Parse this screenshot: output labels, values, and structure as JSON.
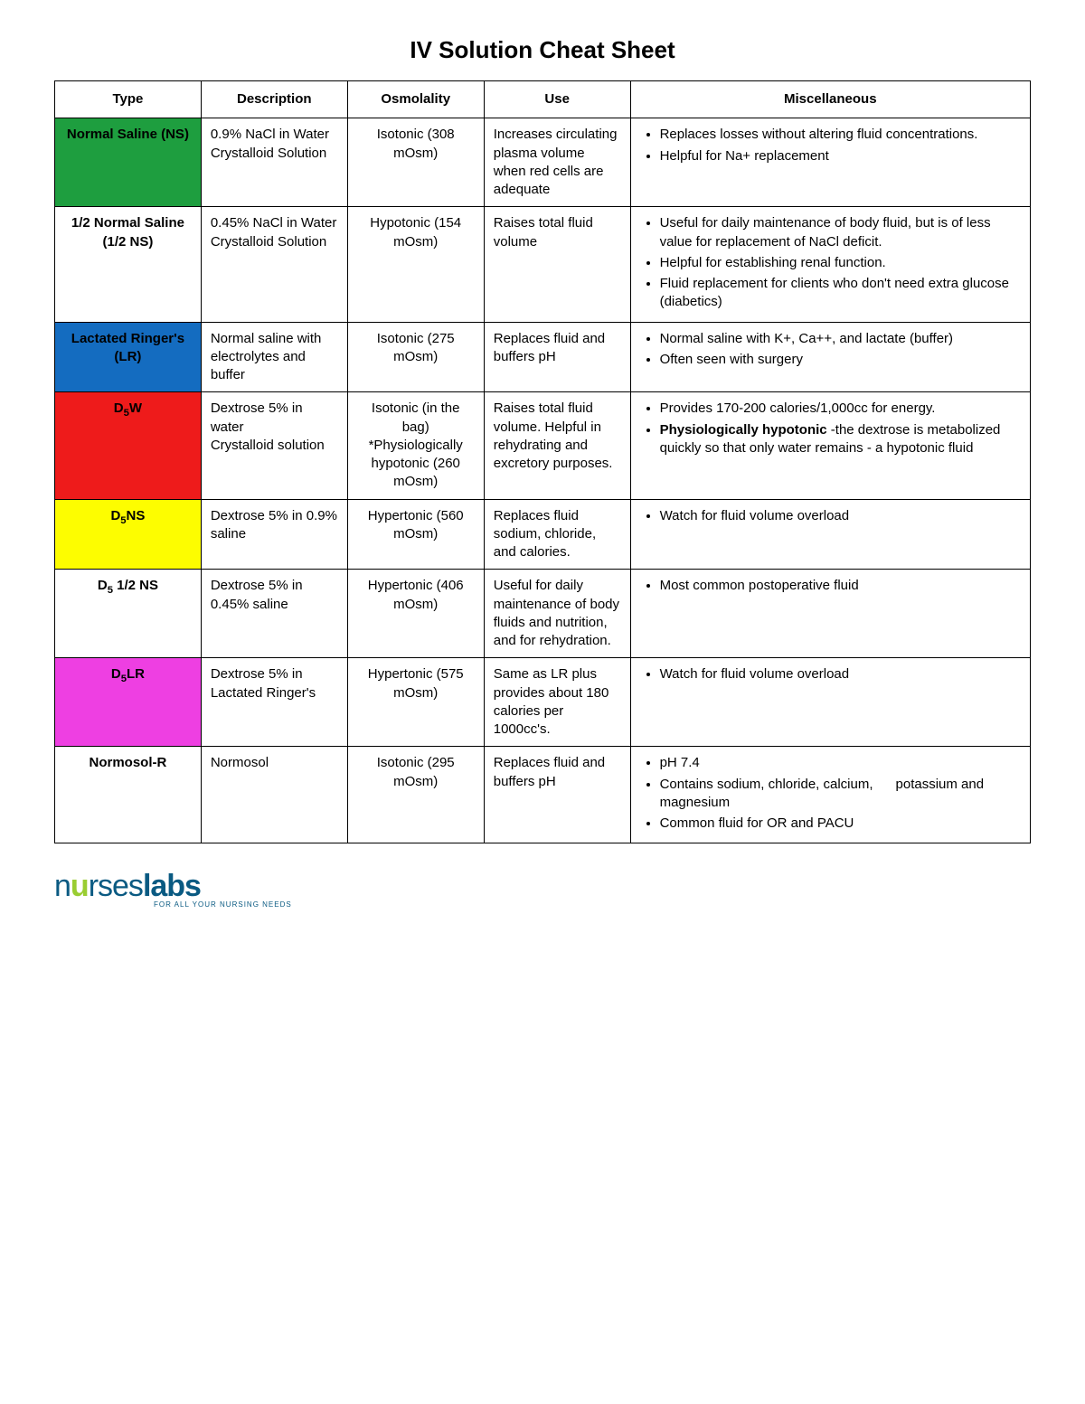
{
  "title": "IV Solution Cheat Sheet",
  "columns": [
    "Type",
    "Description",
    "Osmolality",
    "Use",
    "Miscellaneous"
  ],
  "column_widths_pct": [
    15,
    15,
    14,
    15,
    41
  ],
  "border_color": "#000000",
  "background_color": "#ffffff",
  "title_fontsize": 26,
  "body_fontsize": 15,
  "rows": [
    {
      "type_html": "Normal Saline (NS)",
      "type_bg": "#1e9e3f",
      "type_text_color": "#000000",
      "description": "0.9% NaCl in Water\nCrystalloid Solution",
      "osmolality": "Isotonic (308 mOsm)",
      "use": "Increases circulating plasma volume when red cells are adequate",
      "misc": [
        "Replaces losses without altering fluid concentrations.",
        "Helpful for Na+ replacement"
      ]
    },
    {
      "type_html": "1/2 Normal Saline (1/2 NS)",
      "type_bg": "#ffffff",
      "type_text_color": "#000000",
      "description": "0.45% NaCl in Water\nCrystalloid Solution",
      "osmolality": "Hypotonic (154 mOsm)",
      "use": "Raises total fluid volume",
      "misc": [
        "Useful for daily maintenance of body fluid, but is of less value for replacement of NaCl deficit.",
        "Helpful for establishing renal function.",
        "Fluid replacement for clients who don't need extra glucose (diabetics)"
      ]
    },
    {
      "type_html": "Lactated Ringer's (LR)",
      "type_bg": "#146cc0",
      "type_text_color": "#000000",
      "description": "Normal saline with electrolytes and buffer",
      "osmolality": "Isotonic (275 mOsm)",
      "use": "Replaces fluid and buffers pH",
      "misc": [
        "Normal saline with K+, Ca++, and lactate (buffer)",
        "Often seen with surgery"
      ]
    },
    {
      "type_html": "D<sub>5</sub>W",
      "type_bg": "#ee1b1b",
      "type_text_color": "#000000",
      "description": "Dextrose 5% in water\nCrystalloid solution",
      "osmolality": "Isotonic (in the bag) *Physiologically hypotonic (260 mOsm)",
      "use": "Raises  total fluid volume. Helpful in rehydrating and excretory purposes.",
      "misc": [
        "Provides 170-200 calories/1,000cc for energy.",
        "<b>Physiologically hypotonic</b> -the dextrose is metabolized quickly so that only water remains - a hypotonic fluid"
      ]
    },
    {
      "type_html": "D<sub>5</sub>NS",
      "type_bg": "#fdfd00",
      "type_text_color": "#000000",
      "description": "Dextrose 5% in 0.9% saline",
      "osmolality": "Hypertonic (560 mOsm)",
      "use": "Replaces fluid sodium, chloride, and calories.",
      "misc": [
        "Watch for fluid volume overload"
      ]
    },
    {
      "type_html": "D<sub>5</sub> 1/2 NS",
      "type_bg": "#ffffff",
      "type_text_color": "#000000",
      "description": "Dextrose 5% in 0.45% saline",
      "osmolality": "Hypertonic (406 mOsm)",
      "use": "Useful for daily maintenance of body fluids and nutrition, and for rehydration.",
      "misc": [
        "Most common postoperative fluid"
      ]
    },
    {
      "type_html": "D<sub>5</sub>LR",
      "type_bg": "#ee3fe2",
      "type_text_color": "#000000",
      "description": "Dextrose 5% in Lactated Ringer's",
      "osmolality": "Hypertonic (575 mOsm)",
      "use": "Same as LR plus provides about 180 calories per 1000cc's.",
      "misc": [
        "Watch for fluid volume overload"
      ]
    },
    {
      "type_html": "Normosol-R",
      "type_bg": "#ffffff",
      "type_text_color": "#000000",
      "description": "Normosol",
      "osmolality": "Isotonic (295 mOsm)",
      "use": "Replaces fluid and buffers pH",
      "misc": [
        "pH 7.4",
        "Contains sodium, chloride, calcium,&nbsp;&nbsp;&nbsp;&nbsp;&nbsp;&nbsp;potassium and magnesium",
        "Common fluid for OR and PACU"
      ]
    }
  ],
  "logo": {
    "text_left": "n",
    "text_mid": "u",
    "text_rses": "rses",
    "text_labs": "labs",
    "tagline": "FOR ALL YOUR NURSING NEEDS",
    "color_main": "#0a5a82",
    "color_accent": "#9acd32"
  }
}
